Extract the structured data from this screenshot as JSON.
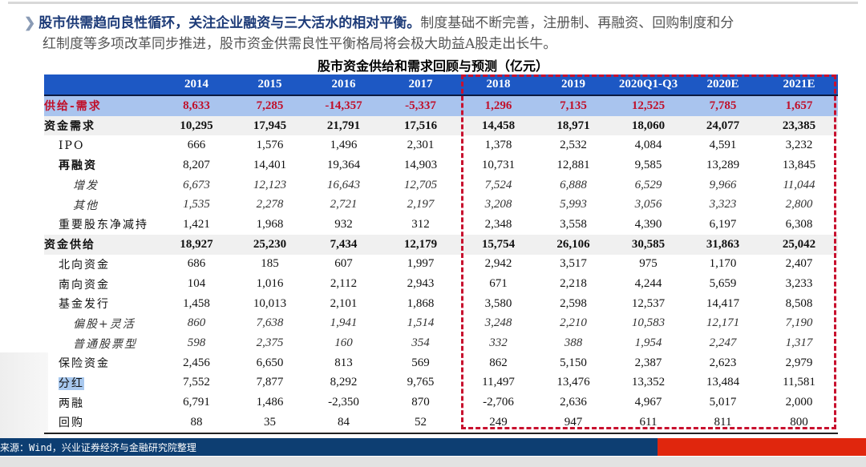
{
  "intro": {
    "lead": "股市供需趋向良性循环，关注企业融资与三大活水的相对平衡。",
    "body1": "制度基础不断完善，注册制、再融资、回购制度和分",
    "body2": "红制度等多项改革同步推进，股市资金供需良性平衡格局将会极大助益A股走出长牛。"
  },
  "table": {
    "title": "股市资金供给和需求回顾与预测（亿元）",
    "columns": [
      "2014",
      "2015",
      "2016",
      "2017",
      "2018",
      "2019",
      "2020Q1-Q3",
      "2020E",
      "2021E"
    ],
    "rows": [
      {
        "label": "供给-需求",
        "style": "diff",
        "indent": 0,
        "values": [
          "8,633",
          "7,285",
          "-14,357",
          "-5,337",
          "1,296",
          "7,135",
          "12,525",
          "7,785",
          "1,657"
        ]
      },
      {
        "label": "资金需求",
        "style": "bold",
        "indent": 0,
        "values": [
          "10,295",
          "17,945",
          "21,791",
          "17,516",
          "14,458",
          "18,971",
          "18,060",
          "24,077",
          "23,385"
        ]
      },
      {
        "label": "IPO",
        "style": "normal",
        "indent": 1,
        "values": [
          "666",
          "1,576",
          "1,496",
          "2,301",
          "1,378",
          "2,532",
          "4,084",
          "4,591",
          "3,232"
        ]
      },
      {
        "label": "再融资",
        "style": "subbold",
        "indent": 1,
        "values": [
          "8,207",
          "14,401",
          "19,364",
          "14,903",
          "10,731",
          "12,881",
          "9,585",
          "13,289",
          "13,845"
        ]
      },
      {
        "label": "增发",
        "style": "ital",
        "indent": 2,
        "values": [
          "6,673",
          "12,123",
          "16,643",
          "12,705",
          "7,524",
          "6,888",
          "6,529",
          "9,966",
          "11,044"
        ]
      },
      {
        "label": "其他",
        "style": "ital",
        "indent": 2,
        "values": [
          "1,535",
          "2,278",
          "2,721",
          "2,197",
          "3,208",
          "5,993",
          "3,056",
          "3,323",
          "2,800"
        ]
      },
      {
        "label": "重要股东净减持",
        "style": "normal",
        "indent": 1,
        "values": [
          "1,421",
          "1,968",
          "932",
          "312",
          "2,348",
          "3,558",
          "4,390",
          "6,197",
          "6,308"
        ]
      },
      {
        "label": "资金供给",
        "style": "bold",
        "indent": 0,
        "values": [
          "18,927",
          "25,230",
          "7,434",
          "12,179",
          "15,754",
          "26,106",
          "30,585",
          "31,863",
          "25,042"
        ]
      },
      {
        "label": "北向资金",
        "style": "normal",
        "indent": 1,
        "values": [
          "686",
          "185",
          "607",
          "1,997",
          "2,942",
          "3,517",
          "975",
          "1,170",
          "2,407"
        ]
      },
      {
        "label": "南向资金",
        "style": "normal",
        "indent": 1,
        "values": [
          "104",
          "1,016",
          "2,112",
          "2,943",
          "671",
          "2,218",
          "4,244",
          "5,659",
          "3,233"
        ]
      },
      {
        "label": "基金发行",
        "style": "normal",
        "indent": 1,
        "values": [
          "1,458",
          "10,013",
          "2,101",
          "1,868",
          "3,580",
          "2,598",
          "12,537",
          "14,417",
          "8,508"
        ]
      },
      {
        "label": "偏股+灵活",
        "style": "ital",
        "indent": 2,
        "values": [
          "860",
          "7,638",
          "1,941",
          "1,514",
          "3,248",
          "2,210",
          "10,583",
          "12,171",
          "7,190"
        ]
      },
      {
        "label": "普通股票型",
        "style": "ital",
        "indent": 2,
        "values": [
          "598",
          "2,375",
          "160",
          "354",
          "332",
          "388",
          "1,954",
          "2,247",
          "1,317"
        ]
      },
      {
        "label": "保险资金",
        "style": "normal",
        "indent": 1,
        "values": [
          "2,456",
          "6,650",
          "813",
          "569",
          "862",
          "5,150",
          "2,387",
          "2,623",
          "2,979"
        ]
      },
      {
        "label": "分红",
        "style": "normal",
        "indent": 1,
        "highlight": true,
        "values": [
          "7,552",
          "7,877",
          "8,292",
          "9,765",
          "11,497",
          "13,476",
          "13,352",
          "13,484",
          "11,581"
        ]
      },
      {
        "label": "两融",
        "style": "normal",
        "indent": 1,
        "values": [
          "6,791",
          "1,486",
          "-2,350",
          "870",
          "-2,706",
          "2,636",
          "4,967",
          "5,017",
          "2,000"
        ]
      },
      {
        "label": "回购",
        "style": "normal",
        "indent": 1,
        "values": [
          "88",
          "35",
          "84",
          "52",
          "249",
          "947",
          "611",
          "811",
          "800"
        ]
      }
    ]
  },
  "footer": {
    "source": "来源：Wind，兴业证券经济与金融研究院整理"
  },
  "colors": {
    "header_blue": "#1d58c4",
    "diff_bg": "#a9c4ee",
    "accent_red": "#c8102e",
    "footer_blue": "#0d3e72",
    "footer_red": "#e0260d"
  }
}
